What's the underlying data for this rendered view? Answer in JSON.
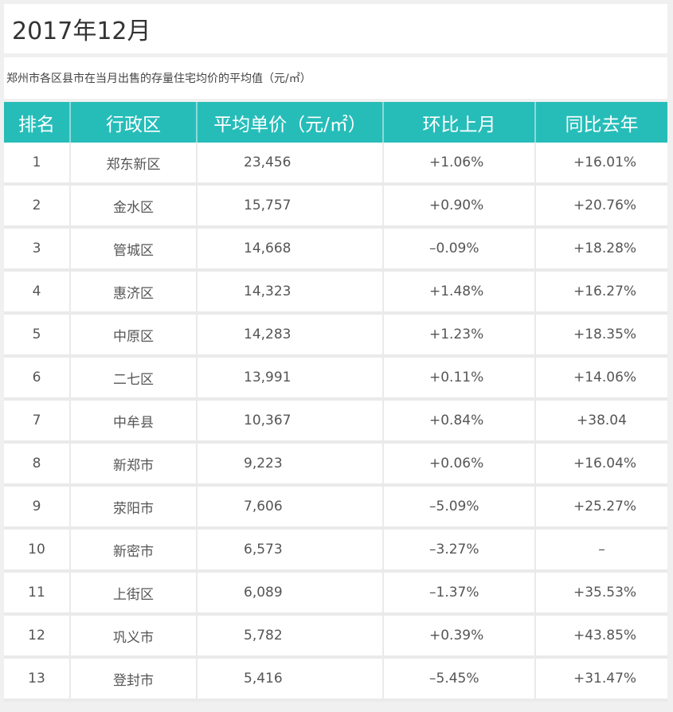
{
  "title": "2017年12月",
  "subtitle": "郑州市各区县市在当月出售的存量住宅均价的平均值（元/㎡）",
  "columns": [
    "排名",
    "行政区",
    "平均单价（元/㎡）",
    "环比上月",
    "同比去年"
  ],
  "rows": [
    {
      "rank": "1",
      "district": "郑东新区",
      "price": "23,456",
      "mom": "+1.06%",
      "yoy": "+16.01%"
    },
    {
      "rank": "2",
      "district": "金水区",
      "price": "15,757",
      "mom": "+0.90%",
      "yoy": "+20.76%"
    },
    {
      "rank": "3",
      "district": "管城区",
      "price": "14,668",
      "mom": "–0.09%",
      "yoy": "+18.28%"
    },
    {
      "rank": "4",
      "district": "惠济区",
      "price": "14,323",
      "mom": "+1.48%",
      "yoy": "+16.27%"
    },
    {
      "rank": "5",
      "district": "中原区",
      "price": "14,283",
      "mom": "+1.23%",
      "yoy": "+18.35%"
    },
    {
      "rank": "6",
      "district": "二七区",
      "price": "13,991",
      "mom": "+0.11%",
      "yoy": "+14.06%"
    },
    {
      "rank": "7",
      "district": "中牟县",
      "price": "10,367",
      "mom": "+0.84%",
      "yoy": "+38.04"
    },
    {
      "rank": "8",
      "district": "新郑市",
      "price": "9,223",
      "mom": "+0.06%",
      "yoy": "+16.04%"
    },
    {
      "rank": "9",
      "district": "荥阳市",
      "price": "7,606",
      "mom": "–5.09%",
      "yoy": "+25.27%"
    },
    {
      "rank": "10",
      "district": "新密市",
      "price": "6,573",
      "mom": "–3.27%",
      "yoy": "–"
    },
    {
      "rank": "11",
      "district": "上街区",
      "price": "6,089",
      "mom": "–1.37%",
      "yoy": "+35.53%"
    },
    {
      "rank": "12",
      "district": "巩义市",
      "price": "5,782",
      "mom": "+0.39%",
      "yoy": "+43.85%"
    },
    {
      "rank": "13",
      "district": "登封市",
      "price": "5,416",
      "mom": "–5.45%",
      "yoy": "+31.47%"
    }
  ]
}
